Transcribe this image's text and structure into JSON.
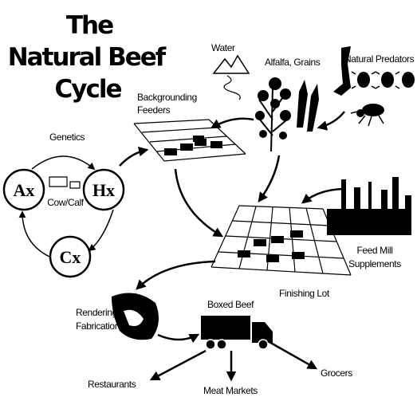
{
  "header": {
    "title": [
      "The",
      "Natural Beef",
      "Cycle"
    ]
  },
  "nodes": [
    {
      "label": "Water"
    },
    {
      "label": "Alfalfa, Grains"
    },
    {
      "label": "Natural Predators"
    },
    {
      "label": [
        "Backgrounding",
        "Feeders"
      ]
    },
    {
      "label": "Genetics"
    },
    {
      "label": "Ax"
    },
    {
      "label": "Hx"
    },
    {
      "label": "Cx"
    },
    {
      "label": "Cow/Calf"
    },
    {
      "label": [
        "Feed Mill",
        "Supplements"
      ]
    },
    {
      "label": "Finishing Lot"
    },
    {
      "label": [
        "Rendering",
        "Fabrication"
      ]
    },
    {
      "label": "Boxed Beef"
    },
    {
      "label": "Restaurants"
    },
    {
      "label": "Meat Markets"
    },
    {
      "label": "Grocers"
    }
  ]
}
